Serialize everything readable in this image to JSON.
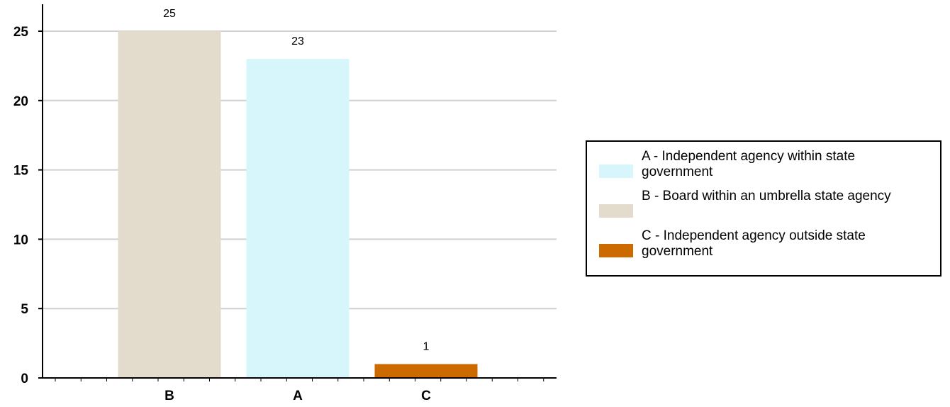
{
  "chart_data": {
    "type": "bar",
    "categories": [
      "B",
      "A",
      "C"
    ],
    "values": [
      25,
      23,
      1
    ],
    "colors": [
      "#e3dccd",
      "#d6f6fb",
      "#cc6a00"
    ],
    "title": "",
    "xlabel": "",
    "ylabel": "",
    "ylim": [
      0,
      25
    ],
    "yticks": [
      "0",
      "5",
      "10",
      "15",
      "20",
      "25"
    ],
    "data_labels": [
      "25",
      "23",
      "1"
    ],
    "grid": true,
    "legend_position": "right",
    "legend": [
      {
        "label": "A - Independent agency within state government",
        "color": "#d6f6fb"
      },
      {
        "label": "B - Board within an umbrella state agency",
        "color": "#e3dccd"
      },
      {
        "label": "C - Independent agency outside state government",
        "color": "#cc6a00"
      }
    ]
  }
}
